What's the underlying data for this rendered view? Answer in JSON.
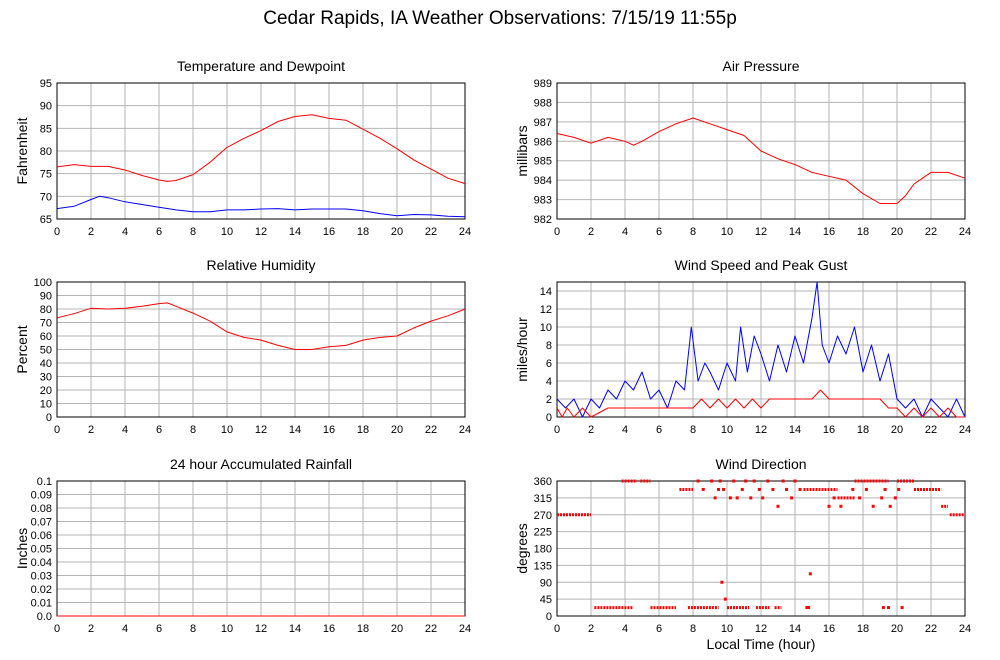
{
  "title": "Cedar Rapids, IA Weather Observations: 7/15/19 11:55p",
  "xlabel": "Local Time (hour)",
  "colors": {
    "red": "#ff0000",
    "blue": "#0000ff",
    "grid": "#b4b4b4",
    "frame": "#000000"
  },
  "chart_data": [
    {
      "id": "temp",
      "type": "line",
      "title": "Temperature and Dewpoint",
      "xlabel": "",
      "ylabel": "Fahrenheit",
      "xlim": [
        0,
        24
      ],
      "ylim": [
        65,
        95
      ],
      "xticks": [
        0,
        2,
        4,
        6,
        8,
        10,
        12,
        14,
        16,
        18,
        20,
        22,
        24
      ],
      "yticks": [
        65,
        70,
        75,
        80,
        85,
        90,
        95
      ],
      "grid": true,
      "series": [
        {
          "color": "#ff0000",
          "x": [
            0,
            1,
            2,
            3,
            4,
            5,
            6,
            6.5,
            7,
            8,
            9,
            10,
            11,
            12,
            13,
            14,
            15,
            16,
            17,
            18,
            19,
            20,
            21,
            22,
            23,
            24
          ],
          "y": [
            76.5,
            77,
            76.6,
            76.6,
            75.8,
            74.6,
            73.6,
            73.3,
            73.5,
            74.8,
            77.5,
            80.8,
            82.8,
            84.5,
            86.5,
            87.6,
            88,
            87.2,
            86.8,
            84.8,
            82.8,
            80.5,
            78,
            76,
            74,
            72.8
          ]
        },
        {
          "color": "#0000ff",
          "x": [
            0,
            1,
            2,
            2.5,
            3,
            4,
            5,
            6,
            7,
            8,
            9,
            10,
            11,
            12,
            13,
            14,
            15,
            16,
            17,
            18,
            19,
            20,
            21,
            22,
            23,
            24
          ],
          "y": [
            67.3,
            67.8,
            69.3,
            70,
            69.7,
            68.8,
            68.2,
            67.6,
            67,
            66.6,
            66.6,
            67,
            67,
            67.2,
            67.3,
            67,
            67.2,
            67.2,
            67.2,
            66.8,
            66.2,
            65.7,
            66,
            65.9,
            65.6,
            65.5
          ]
        }
      ]
    },
    {
      "id": "pressure",
      "type": "line",
      "title": "Air Pressure",
      "xlabel": "",
      "ylabel": "millibars",
      "xlim": [
        0,
        24
      ],
      "ylim": [
        982,
        989
      ],
      "xticks": [
        0,
        2,
        4,
        6,
        8,
        10,
        12,
        14,
        16,
        18,
        20,
        22,
        24
      ],
      "yticks": [
        982,
        983,
        984,
        985,
        986,
        987,
        988,
        989
      ],
      "grid": true,
      "series": [
        {
          "color": "#ff0000",
          "x": [
            0,
            1,
            2,
            3,
            4,
            4.5,
            5,
            6,
            7,
            8,
            9,
            10,
            11,
            12,
            13,
            14,
            15,
            16,
            17,
            18,
            19,
            20,
            20.5,
            21,
            22,
            23,
            24
          ],
          "y": [
            986.4,
            986.2,
            985.9,
            986.2,
            986,
            985.8,
            986,
            986.5,
            986.9,
            987.2,
            986.9,
            986.6,
            986.3,
            985.5,
            985.1,
            984.8,
            984.4,
            984.2,
            984,
            983.3,
            982.8,
            982.8,
            983.2,
            983.8,
            984.4,
            984.4,
            984.1
          ]
        }
      ]
    },
    {
      "id": "humidity",
      "type": "line",
      "title": "Relative Humidity",
      "xlabel": "",
      "ylabel": "Percent",
      "xlim": [
        0,
        24
      ],
      "ylim": [
        0,
        100
      ],
      "xticks": [
        0,
        2,
        4,
        6,
        8,
        10,
        12,
        14,
        16,
        18,
        20,
        22,
        24
      ],
      "yticks": [
        0,
        10,
        20,
        30,
        40,
        50,
        60,
        70,
        80,
        90,
        100
      ],
      "grid": true,
      "series": [
        {
          "color": "#ff0000",
          "x": [
            0,
            1,
            2,
            3,
            4,
            5,
            6,
            6.5,
            7,
            8,
            9,
            10,
            11,
            12,
            13,
            14,
            15,
            16,
            17,
            18,
            19,
            20,
            21,
            22,
            23,
            24
          ],
          "y": [
            73.5,
            76.5,
            80.5,
            80,
            80.5,
            82,
            84,
            84.5,
            82,
            77,
            71,
            63,
            59,
            57,
            53,
            50,
            50,
            52,
            53,
            57,
            59,
            60,
            66,
            71,
            75,
            80
          ]
        }
      ]
    },
    {
      "id": "wind",
      "type": "line",
      "title": "Wind Speed and Peak Gust",
      "xlabel": "",
      "ylabel": "miles/hour",
      "xlim": [
        0,
        24
      ],
      "ylim": [
        0,
        15
      ],
      "xticks": [
        0,
        2,
        4,
        6,
        8,
        10,
        12,
        14,
        16,
        18,
        20,
        22,
        24
      ],
      "yticks": [
        0,
        2,
        4,
        6,
        8,
        10,
        12,
        14
      ],
      "grid": true,
      "series": [
        {
          "color": "#0000ff",
          "x": [
            0,
            0.5,
            1,
            1.5,
            2,
            2.5,
            3,
            3.5,
            4,
            4.5,
            5,
            5.5,
            6,
            6.5,
            7,
            7.5,
            7.9,
            8.3,
            8.7,
            9,
            9.5,
            10,
            10.5,
            10.8,
            11.2,
            11.6,
            12,
            12.5,
            13,
            13.5,
            14,
            14.5,
            15,
            15.3,
            15.6,
            16,
            16.5,
            17,
            17.5,
            18,
            18.5,
            19,
            19.5,
            20,
            20.5,
            21,
            21.5,
            22,
            22.5,
            23,
            23.5,
            24
          ],
          "y": [
            2,
            1,
            2,
            0,
            2,
            1,
            3,
            2,
            4,
            3,
            5,
            2,
            3,
            1,
            4,
            3,
            10,
            4,
            6,
            5,
            3,
            6,
            4,
            10,
            5,
            9,
            7,
            4,
            8,
            5,
            9,
            6,
            11,
            15,
            8,
            6,
            9,
            7,
            10,
            5,
            8,
            4,
            7,
            2,
            1,
            2,
            0,
            2,
            1,
            0,
            2,
            0
          ]
        },
        {
          "color": "#ff0000",
          "x": [
            0,
            0.3,
            0.6,
            1,
            1.5,
            2,
            3,
            4,
            5,
            6,
            7,
            8,
            8.5,
            9,
            9.5,
            10,
            10.5,
            11,
            11.5,
            12,
            12.5,
            13,
            13.5,
            14,
            14.5,
            15,
            15.5,
            16,
            16.5,
            17,
            17.5,
            18,
            18.5,
            19,
            19.5,
            20,
            20.5,
            21,
            21.5,
            22,
            22.5,
            23,
            23.5,
            24
          ],
          "y": [
            1,
            0,
            1,
            0,
            1,
            0,
            1,
            1,
            1,
            1,
            1,
            1,
            2,
            1,
            2,
            1,
            2,
            1,
            2,
            1,
            2,
            2,
            2,
            2,
            2,
            2,
            3,
            2,
            2,
            2,
            2,
            2,
            2,
            2,
            1,
            1,
            0,
            1,
            0,
            1,
            0,
            1,
            0,
            0
          ]
        }
      ]
    },
    {
      "id": "rain",
      "type": "line",
      "title": "24 hour Accumulated Rainfall",
      "xlabel": "",
      "ylabel": "Inches",
      "xlim": [
        0,
        24
      ],
      "ylim": [
        0,
        0.1
      ],
      "xticks": [
        0,
        2,
        4,
        6,
        8,
        10,
        12,
        14,
        16,
        18,
        20,
        22,
        24
      ],
      "yticks": [
        0.0,
        0.01,
        0.02,
        0.03,
        0.04,
        0.05,
        0.06,
        0.07,
        0.08,
        0.09,
        0.1
      ],
      "ytick_labels": [
        "0.0",
        "0.01",
        "0.02",
        "0.03",
        "0.04",
        "0.05",
        "0.06",
        "0.07",
        "0.08",
        "0.09",
        "0.1"
      ],
      "grid": true,
      "series": [
        {
          "color": "#ff0000",
          "x": [
            0,
            24
          ],
          "y": [
            0,
            0
          ]
        }
      ]
    },
    {
      "id": "direction",
      "type": "scatter",
      "title": "Wind Direction",
      "xlabel": "Local Time (hour)",
      "ylabel": "degrees",
      "xlim": [
        0,
        24
      ],
      "ylim": [
        0,
        360
      ],
      "xticks": [
        0,
        2,
        4,
        6,
        8,
        10,
        12,
        14,
        16,
        18,
        20,
        22,
        24
      ],
      "yticks": [
        0,
        45,
        90,
        135,
        180,
        225,
        270,
        315,
        360
      ],
      "grid": true,
      "runs": [
        {
          "x0": 0,
          "x1": 2,
          "y": 270
        },
        {
          "x0": 2.2,
          "x1": 4.5,
          "y": 22.5
        },
        {
          "x0": 5.5,
          "x1": 7,
          "y": 22.5
        },
        {
          "x0": 7.7,
          "x1": 9.5,
          "y": 22.5
        },
        {
          "x0": 10,
          "x1": 11.3,
          "y": 22.5
        },
        {
          "x0": 11.7,
          "x1": 12.5,
          "y": 22.5
        },
        {
          "x0": 12.8,
          "x1": 13.2,
          "y": 22.5
        },
        {
          "x0": 3.8,
          "x1": 4.7,
          "y": 360
        },
        {
          "x0": 4.9,
          "x1": 5.5,
          "y": 360
        },
        {
          "x0": 7.2,
          "x1": 8,
          "y": 337.5
        },
        {
          "x0": 14.5,
          "x1": 16.5,
          "y": 337.5
        },
        {
          "x0": 16.5,
          "x1": 17.5,
          "y": 315
        },
        {
          "x0": 17.5,
          "x1": 19.5,
          "y": 360
        },
        {
          "x0": 20,
          "x1": 21,
          "y": 360
        },
        {
          "x0": 21,
          "x1": 22.6,
          "y": 337.5
        },
        {
          "x0": 22.6,
          "x1": 23,
          "y": 292.5
        },
        {
          "x0": 23.1,
          "x1": 24,
          "y": 270
        }
      ],
      "points": {
        "x": [
          8.3,
          8.6,
          9.1,
          9.3,
          9.5,
          9.6,
          9.8,
          10.2,
          10.4,
          10.6,
          10.9,
          11.1,
          11.4,
          11.6,
          11.9,
          12.1,
          12.4,
          12.7,
          13,
          13.3,
          13.5,
          13.8,
          14,
          14.3,
          14.7,
          14.8,
          16,
          16.3,
          16.7,
          17.4,
          17.8,
          18.2,
          18.6,
          19.1,
          19.3,
          19.6,
          19.9,
          20.1,
          9.7,
          9.9,
          14.9,
          19.2,
          19.5,
          20.3
        ],
        "y": [
          360,
          337.5,
          360,
          315,
          337.5,
          360,
          337.5,
          315,
          360,
          315,
          337.5,
          360,
          315,
          360,
          337.5,
          315,
          360,
          337.5,
          292.5,
          360,
          337.5,
          315,
          360,
          337.5,
          22.5,
          22.5,
          292.5,
          315,
          292.5,
          337.5,
          315,
          337.5,
          292.5,
          315,
          337.5,
          292.5,
          315,
          337.5,
          90,
          45,
          112.5,
          22.5,
          22.5,
          22.5
        ]
      }
    }
  ]
}
